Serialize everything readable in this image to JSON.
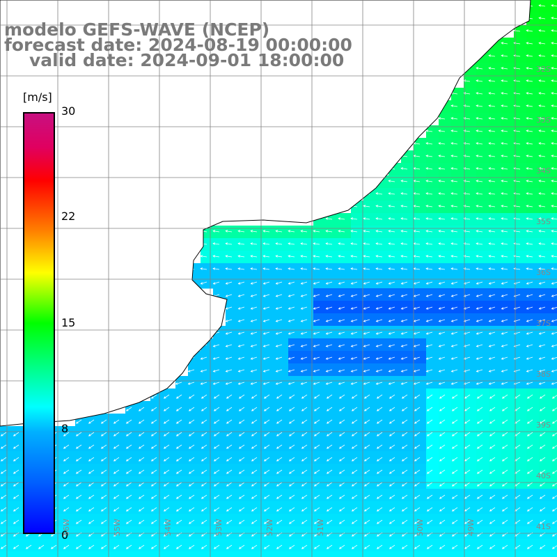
{
  "title": {
    "line1": "modelo GEFS-WAVE (NCEP)",
    "line2": "forecast date: 2024-08-19 00:00:00",
    "line3": "valid date: 2024-09-01 18:00:00"
  },
  "colorbar": {
    "unit": "[m/s]",
    "ticks": [
      "30",
      "22",
      "15",
      "8",
      "0"
    ],
    "range": [
      0,
      30
    ],
    "colors": [
      "#0000ff",
      "#00b0ff",
      "#00ffff",
      "#00ff00",
      "#ffff00",
      "#ff8000",
      "#ff0000",
      "#c81080"
    ]
  },
  "map": {
    "lat_labels": [
      "32S",
      "33S",
      "34S",
      "35S",
      "36S",
      "37S",
      "38S",
      "39S",
      "40S",
      "41S"
    ],
    "lon_labels": [
      "56W",
      "55W",
      "54W",
      "53W",
      "52W",
      "51W",
      "50W",
      "49W"
    ],
    "land_color": "#ffffff",
    "grid_color": "#808080",
    "arrow_color": "#ffffff"
  }
}
